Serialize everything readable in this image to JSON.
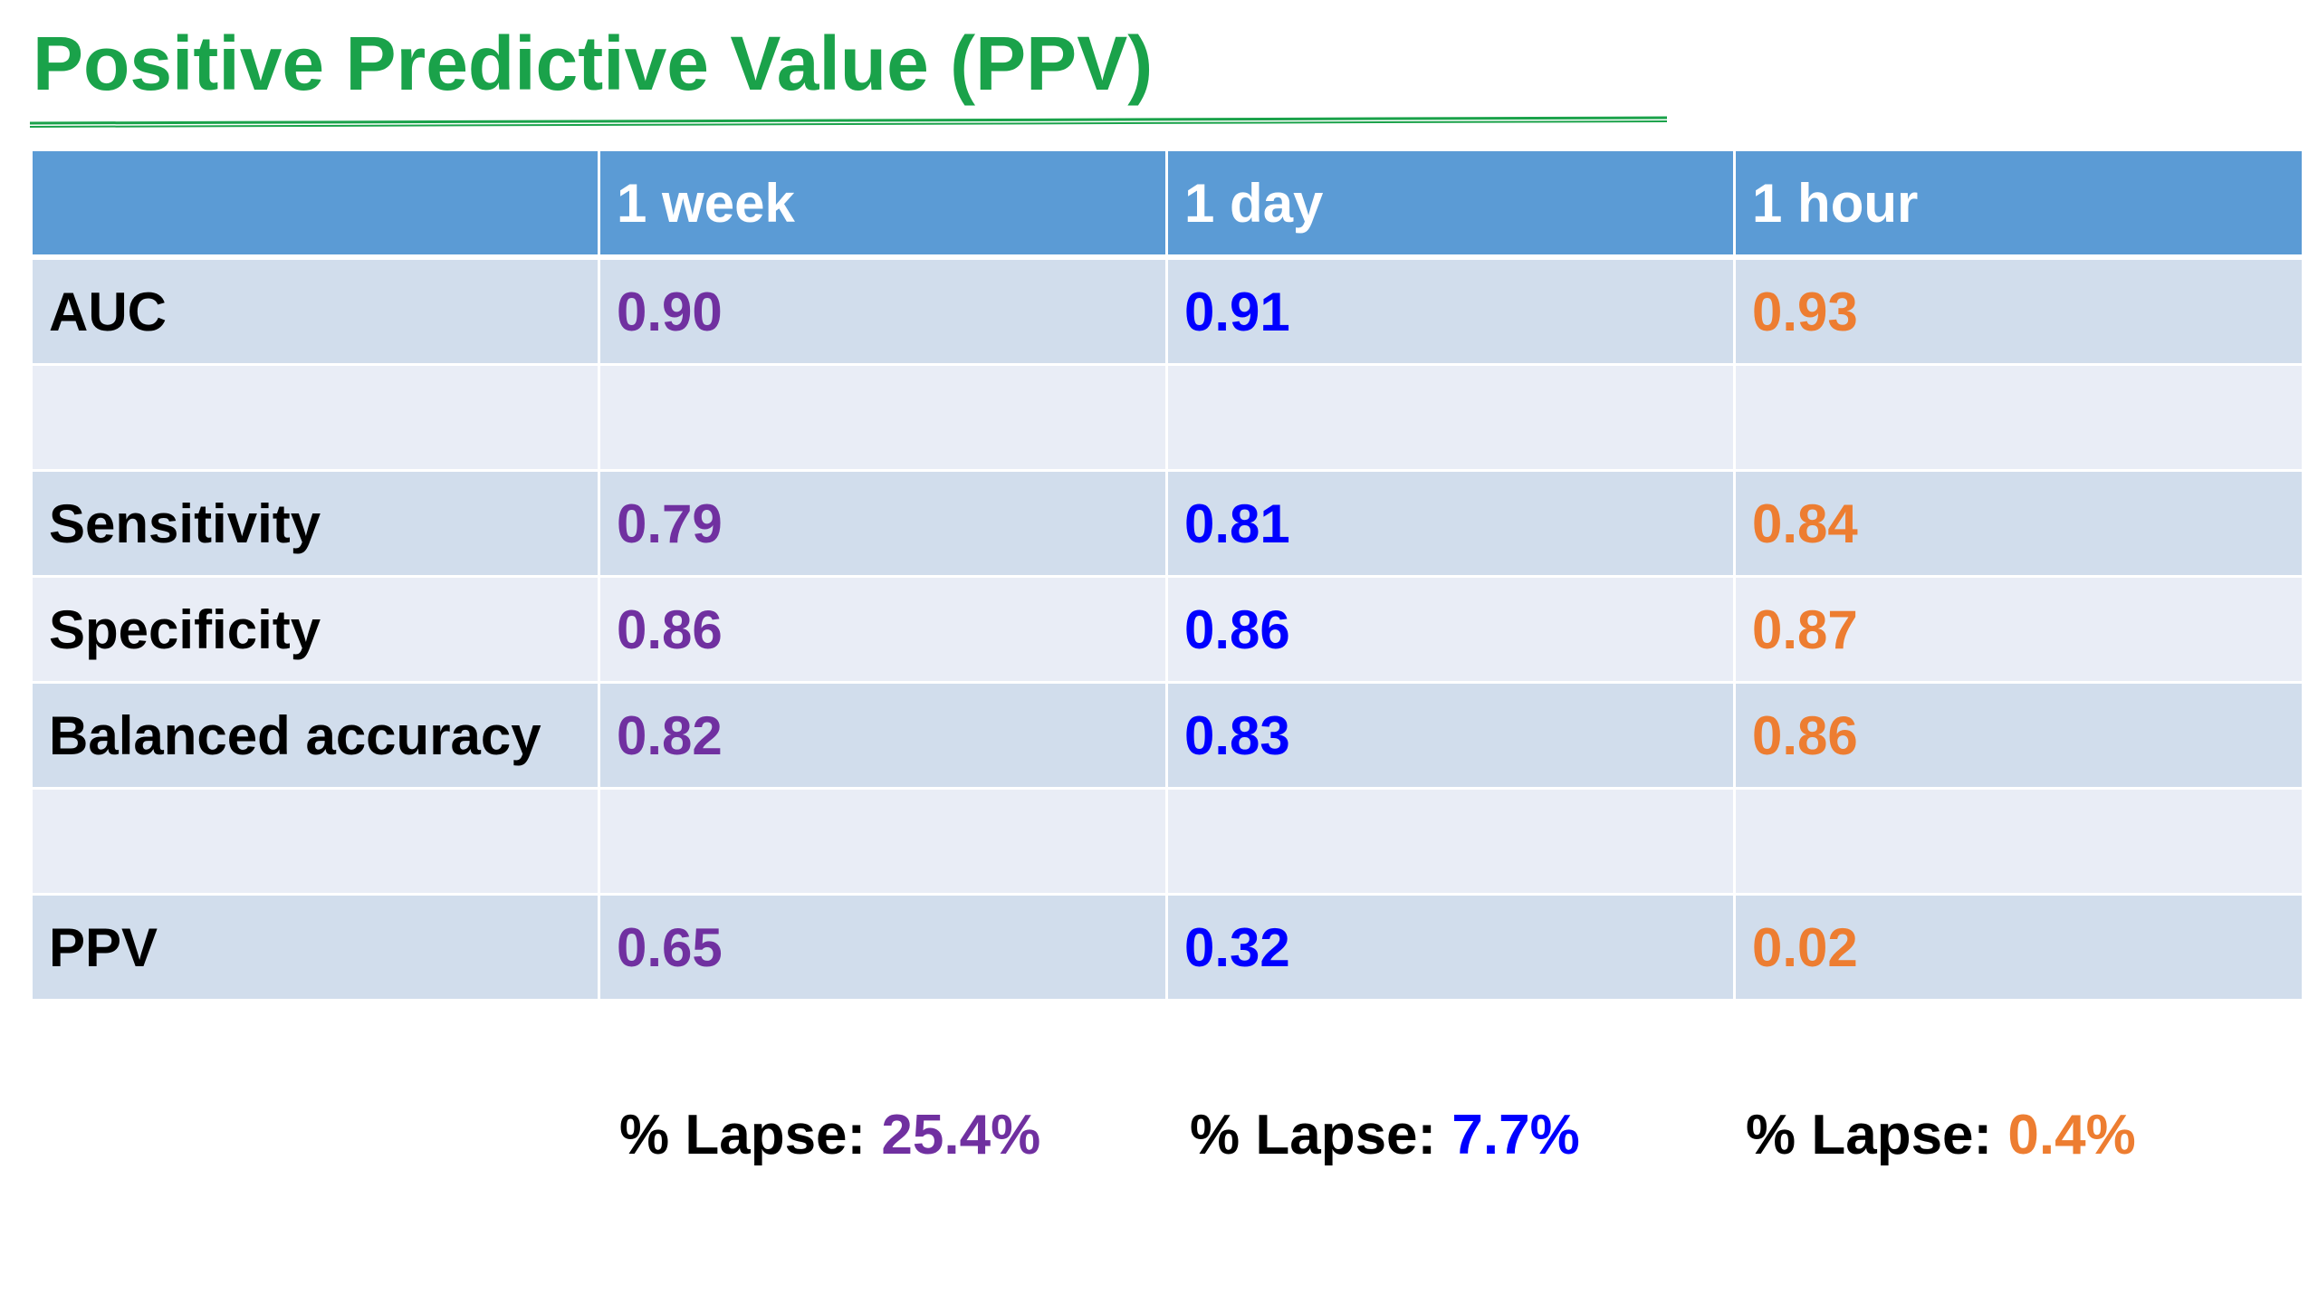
{
  "title": "Positive Predictive Value (PPV)",
  "colors": {
    "title": "#1aa24a",
    "header_bg": "#5b9bd5",
    "row_dark": "#d1ddec",
    "row_light": "#e9edf6",
    "week": "#7030a0",
    "day": "#0000ff",
    "hour": "#ed7d31"
  },
  "table": {
    "columns": [
      "",
      "1 week",
      "1 day",
      "1 hour"
    ],
    "rows": [
      {
        "label": "AUC",
        "values": [
          "0.90",
          "0.91",
          "0.93"
        ]
      },
      {
        "label": "",
        "values": [
          "",
          "",
          ""
        ]
      },
      {
        "label": "Sensitivity",
        "values": [
          "0.79",
          "0.81",
          "0.84"
        ]
      },
      {
        "label": "Specificity",
        "values": [
          "0.86",
          "0.86",
          "0.87"
        ]
      },
      {
        "label": "Balanced accuracy",
        "values": [
          "0.82",
          "0.83",
          "0.86"
        ]
      },
      {
        "label": "",
        "values": [
          "",
          "",
          ""
        ]
      },
      {
        "label": "PPV",
        "values": [
          "0.65",
          "0.32",
          "0.02"
        ]
      }
    ]
  },
  "lapse": [
    {
      "label": "% Lapse: ",
      "value": "25.4%"
    },
    {
      "label": "% Lapse: ",
      "value": "7.7%"
    },
    {
      "label": "% Lapse: ",
      "value": "0.4%"
    }
  ]
}
